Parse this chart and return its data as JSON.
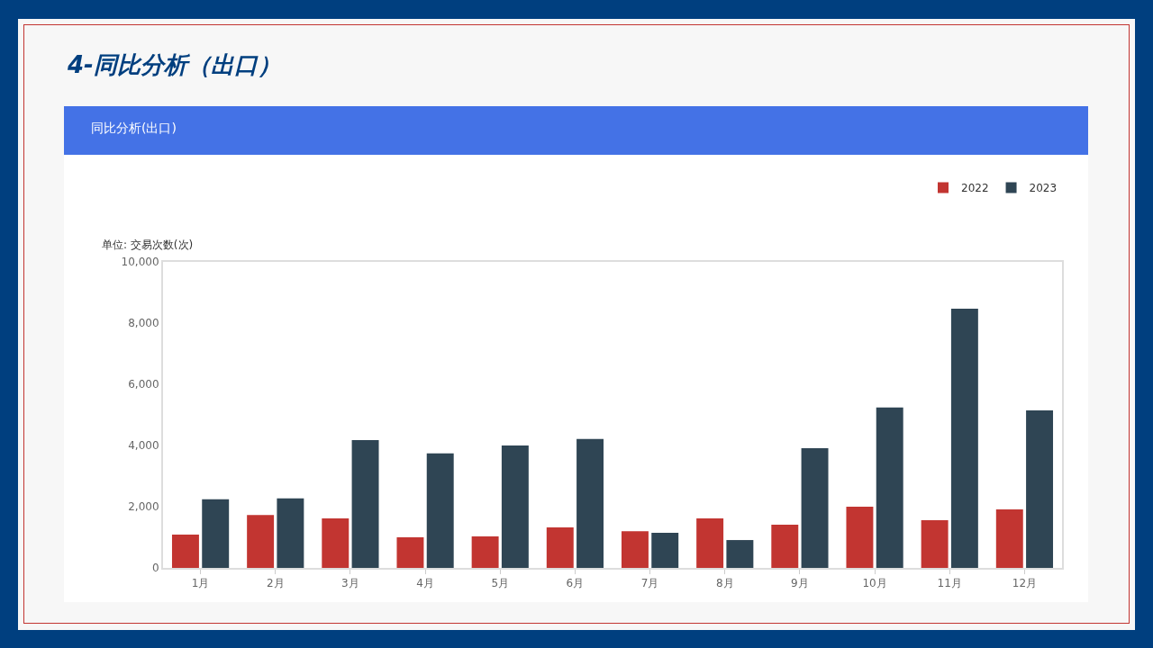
{
  "chart_data": {
    "type": "bar",
    "title": "4-同比分析（出口）",
    "subtitle": "同比分析(出口)",
    "ylabel": "单位: 交易次数(次)",
    "categories": [
      "1月",
      "2月",
      "3月",
      "4月",
      "5月",
      "6月",
      "7月",
      "8月",
      "9月",
      "10月",
      "11月",
      "12月"
    ],
    "series": [
      {
        "name": "2022",
        "color": "#c23531",
        "values": [
          1090,
          1730,
          1620,
          1000,
          1030,
          1320,
          1200,
          1620,
          1410,
          2000,
          1560,
          1910
        ]
      },
      {
        "name": "2023",
        "color": "#2f4554",
        "values": [
          2240,
          2270,
          4180,
          3740,
          4000,
          4210,
          1150,
          910,
          3910,
          5240,
          8470,
          5150
        ]
      }
    ],
    "ylim": [
      0,
      10000
    ],
    "yticks": [
      {
        "value": 0,
        "label": "0"
      },
      {
        "value": 2000,
        "label": "2,000"
      },
      {
        "value": 4000,
        "label": "4,000"
      },
      {
        "value": 6000,
        "label": "6,000"
      },
      {
        "value": 8000,
        "label": "8,000"
      },
      {
        "value": 10000,
        "label": "10,000"
      }
    ],
    "grid": false,
    "legend": "top right"
  }
}
